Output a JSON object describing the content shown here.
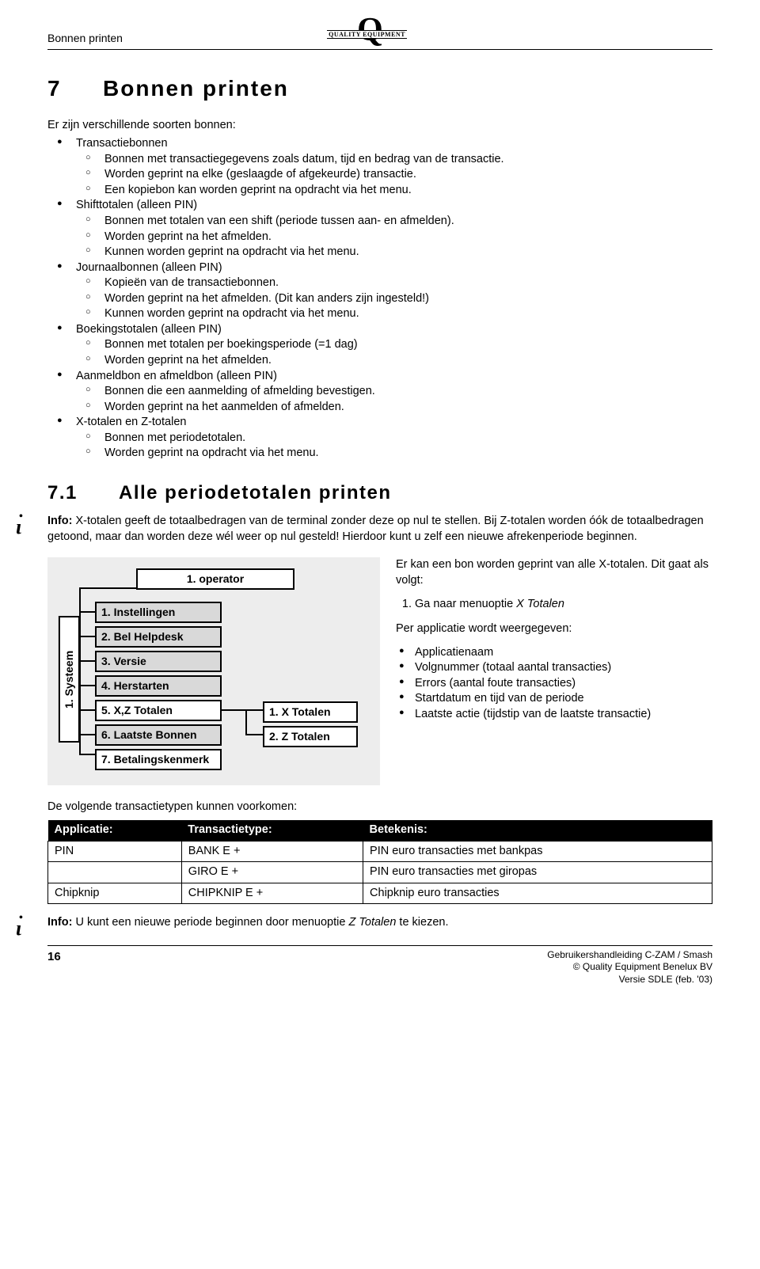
{
  "header": {
    "section": "Bonnen printen",
    "logo_text": "QUALITY EQUIPMENT"
  },
  "h1": {
    "num": "7",
    "title": "Bonnen printen"
  },
  "intro": "Er zijn verschillende soorten bonnen:",
  "list": [
    {
      "label": "Transactiebonnen",
      "subs": [
        "Bonnen met transactiegegevens zoals datum, tijd en bedrag van de transactie.",
        "Worden geprint na elke (geslaagde of afgekeurde) transactie.",
        "Een kopiebon kan worden geprint na opdracht via het menu."
      ]
    },
    {
      "label": "Shifttotalen (alleen PIN)",
      "subs": [
        "Bonnen met totalen van een shift (periode tussen aan- en afmelden).",
        "Worden geprint na het afmelden.",
        "Kunnen worden geprint na opdracht via het menu."
      ]
    },
    {
      "label": "Journaalbonnen (alleen PIN)",
      "subs": [
        "Kopieën van de transactiebonnen.",
        "Worden geprint na het afmelden. (Dit kan anders zijn ingesteld!)",
        "Kunnen worden geprint na opdracht via het menu."
      ]
    },
    {
      "label": "Boekingstotalen (alleen PIN)",
      "subs": [
        "Bonnen met totalen per boekingsperiode (=1 dag)",
        "Worden geprint na het afmelden."
      ]
    },
    {
      "label": "Aanmeldbon en afmeldbon (alleen PIN)",
      "subs": [
        "Bonnen die een aanmelding of afmelding bevestigen.",
        "Worden geprint na het aanmelden of afmelden."
      ]
    },
    {
      "label": "X-totalen en Z-totalen",
      "subs": [
        "Bonnen met periodetotalen.",
        "Worden geprint na opdracht via het menu."
      ]
    }
  ],
  "h2": {
    "num": "7.1",
    "title": "Alle periodetotalen printen"
  },
  "info1": {
    "label": "Info:",
    "text": "X-totalen geeft de totaalbedragen van de terminal zonder deze op nul te stellen. Bij Z-totalen worden óók de totaalbedragen getoond, maar dan worden deze wél weer op nul gesteld! Hierdoor kunt u zelf een nieuwe afrekenperiode beginnen."
  },
  "diagram": {
    "operator": "1. operator",
    "systeem": "1. Systeem",
    "col1": [
      {
        "t": "1. Instellingen",
        "shaded": true
      },
      {
        "t": "2. Bel Helpdesk",
        "shaded": true
      },
      {
        "t": "3. Versie",
        "shaded": true
      },
      {
        "t": "4. Herstarten",
        "shaded": true
      },
      {
        "t": "5. X,Z Totalen",
        "shaded": false
      },
      {
        "t": "6. Laatste Bonnen",
        "shaded": true
      },
      {
        "t": "7. Betalingskenmerk",
        "shaded": false
      }
    ],
    "col2": [
      {
        "t": "1. X Totalen"
      },
      {
        "t": "2. Z Totalen"
      }
    ]
  },
  "right": {
    "p1a": "Er kan een bon worden geprint van alle X-totalen. Dit gaat als volgt:",
    "step1": "Ga naar menuoptie ",
    "step1_em": "X Totalen",
    "p2": "Per applicatie wordt weergegeven:",
    "bullets": [
      "Applicatienaam",
      "Volgnummer (totaal aantal transacties)",
      "Errors (aantal foute transacties)",
      "Startdatum en tijd van de periode",
      "Laatste actie (tijdstip van de laatste transactie)"
    ]
  },
  "pre_table": "De volgende transactietypen kunnen voorkomen:",
  "table": {
    "headers": [
      "Applicatie:",
      "Transactietype:",
      "Betekenis:"
    ],
    "rows": [
      [
        "PIN",
        "BANK E +",
        "PIN euro transacties met bankpas"
      ],
      [
        "",
        "GIRO E +",
        "PIN euro transacties met giropas"
      ],
      [
        "Chipknip",
        "CHIPKNIP E +",
        "Chipknip euro transacties"
      ]
    ]
  },
  "info2": {
    "label": "Info:",
    "text_a": "U kunt een nieuwe periode beginnen door menuoptie ",
    "em": "Z Totalen",
    "text_b": " te kiezen."
  },
  "footer": {
    "page": "16",
    "r1": "Gebruikershandleiding C-ZAM / Smash",
    "r2": "© Quality Equipment Benelux BV",
    "r3": "Versie SDLE (feb. '03)"
  }
}
